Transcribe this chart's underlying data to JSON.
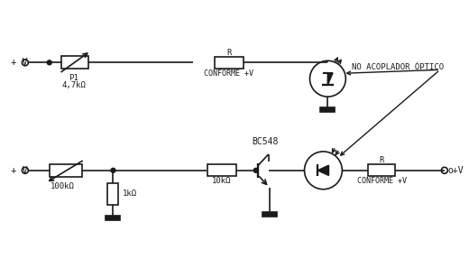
{
  "bg_color": "#ffffff",
  "line_color": "#1a1a1a",
  "circuit1": {
    "vplus_label": "+ V",
    "pot_label": "P1",
    "pot_value": "4,7kΩ",
    "res_label": "R",
    "res_sublabel": "CONFORME +V",
    "opto_label": "NO ACOPLADOR ÓPTICO"
  },
  "circuit2": {
    "vplus_label": "+ V",
    "pot_value": "100kΩ",
    "res1_value": "1kΩ",
    "res2_value": "10kΩ",
    "transistor_label": "BC548",
    "res3_label": "R",
    "res3_sublabel": "CONFORME +V",
    "vout_label": "o+V"
  }
}
